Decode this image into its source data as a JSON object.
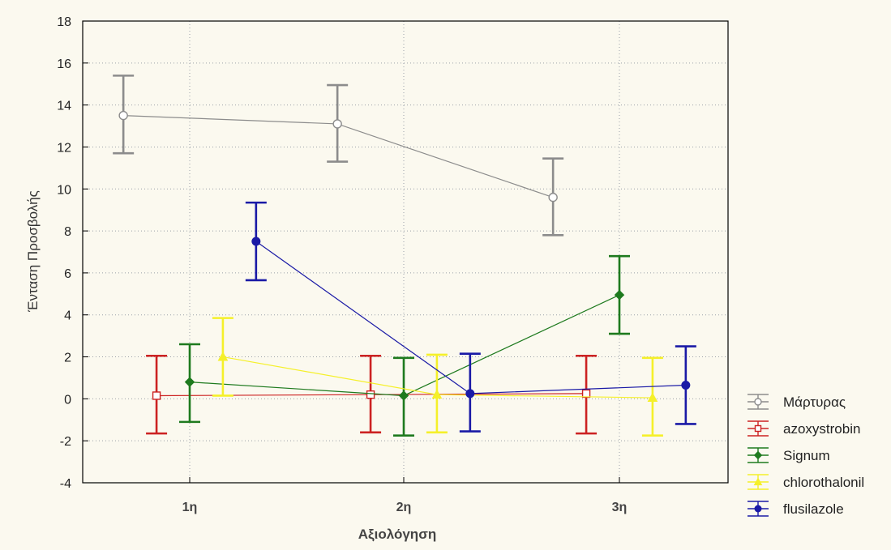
{
  "chart_data": {
    "type": "line",
    "xlabel": "Αξιολόγηση",
    "ylabel": "Ένταση Προσβολής",
    "categories": [
      "1η",
      "2η",
      "3η"
    ],
    "ylim": [
      -4,
      18
    ],
    "yticks": [
      -4,
      -2,
      0,
      2,
      4,
      6,
      8,
      10,
      12,
      14,
      16,
      18
    ],
    "grid": true,
    "legend_position": "right-bottom",
    "error_bars": true,
    "series": [
      {
        "name": "Μάρτυρας",
        "color": "#8c8c8c",
        "marker": "circle-open",
        "values": [
          13.5,
          13.1,
          9.6
        ],
        "lower": [
          11.7,
          11.3,
          7.8
        ],
        "upper": [
          15.4,
          14.95,
          11.45
        ]
      },
      {
        "name": "azoxystrobin",
        "color": "#cc2222",
        "marker": "square-open",
        "values": [
          0.15,
          0.2,
          0.25
        ],
        "lower": [
          -1.65,
          -1.6,
          -1.65
        ],
        "upper": [
          2.05,
          2.05,
          2.05
        ]
      },
      {
        "name": "Signum",
        "color": "#1e7a1e",
        "marker": "diamond",
        "values": [
          0.8,
          0.15,
          4.95
        ],
        "lower": [
          -1.1,
          -1.75,
          3.1
        ],
        "upper": [
          2.6,
          1.95,
          6.8
        ]
      },
      {
        "name": "chlorothalonil",
        "color": "#f5f02a",
        "marker": "triangle",
        "values": [
          2.0,
          0.2,
          0.05
        ],
        "lower": [
          0.15,
          -1.6,
          -1.75
        ],
        "upper": [
          3.85,
          2.1,
          1.95
        ]
      },
      {
        "name": "flusilazole",
        "color": "#1a1aa6",
        "marker": "circle",
        "values": [
          7.5,
          0.25,
          0.65
        ],
        "lower": [
          5.65,
          -1.55,
          -1.2
        ],
        "upper": [
          9.35,
          2.15,
          2.5
        ]
      }
    ]
  }
}
